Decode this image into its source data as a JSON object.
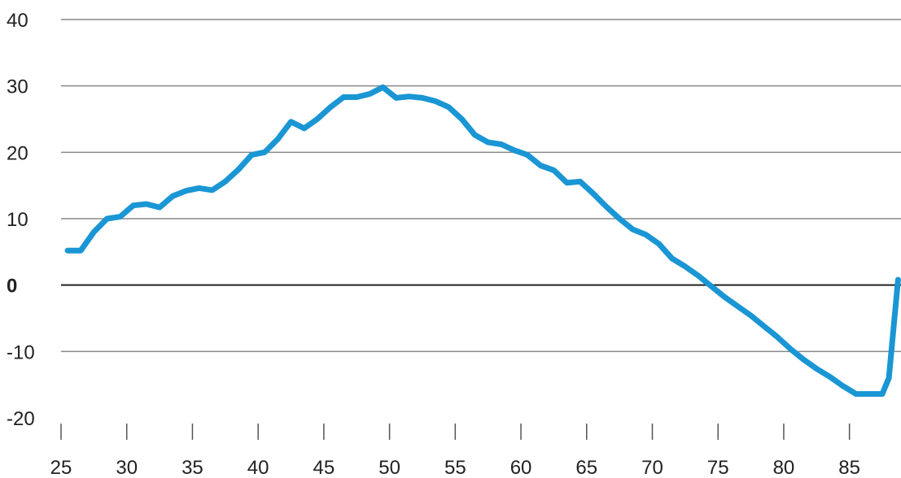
{
  "chart_data": {
    "type": "line",
    "title": "",
    "xlabel": "",
    "ylabel": "",
    "xlim": [
      25,
      88.8
    ],
    "ylim": [
      -20,
      40
    ],
    "yticks": [
      40,
      30,
      20,
      10,
      0,
      -10,
      -20
    ],
    "ytick_labels": [
      "40",
      "30",
      "20",
      "10",
      "0",
      "-10",
      "-20"
    ],
    "xticks": [
      25,
      30,
      35,
      40,
      45,
      50,
      55,
      60,
      65,
      70,
      75,
      80,
      85
    ],
    "xtick_labels": [
      "25",
      "30",
      "35",
      "40",
      "45",
      "50",
      "55",
      "60",
      "65",
      "70",
      "75",
      "80",
      "85"
    ],
    "grid": true,
    "colors": {
      "line": "#1a96d4",
      "grid": "#888888",
      "zero_line": "#222222"
    },
    "series": [
      {
        "x": [
          25.5,
          26.5,
          27.5,
          28.5,
          29.5,
          30.5,
          31.5,
          32.5,
          33.5,
          34.5,
          35.5,
          36.5,
          37.5,
          38.5,
          39.5,
          40.5,
          41.5,
          42.5,
          43.5,
          44.5,
          45.5,
          46.5,
          47.5,
          48.5,
          49.5,
          50.5,
          51.5,
          52.5,
          53.5,
          54.5,
          55.5,
          56.5,
          57.5,
          58.5,
          59.5,
          60.5,
          61.5,
          62.5,
          63.5,
          64.5,
          65.5,
          66.5,
          67.5,
          68.5,
          69.5,
          70.5,
          71.5,
          72.5,
          73.5,
          74.5,
          75.5,
          76.5,
          77.5,
          78.5,
          79.5,
          80.5,
          81.5,
          82.5,
          83.5,
          84.5,
          85.5,
          86.5,
          87.5,
          88.0,
          88.7
        ],
        "y": [
          5.2,
          5.2,
          8.0,
          10.0,
          10.3,
          12.0,
          12.2,
          11.7,
          13.4,
          14.2,
          14.6,
          14.3,
          15.6,
          17.4,
          19.6,
          20.0,
          22.0,
          24.6,
          23.6,
          25.0,
          26.8,
          28.3,
          28.3,
          28.8,
          29.8,
          28.2,
          28.4,
          28.2,
          27.7,
          26.8,
          25.0,
          22.6,
          21.5,
          21.2,
          20.3,
          19.6,
          18.0,
          17.3,
          15.4,
          15.6,
          13.8,
          11.8,
          10.0,
          8.4,
          7.6,
          6.2,
          4.0,
          2.8,
          1.4,
          -0.2,
          -1.8,
          -3.2,
          -4.6,
          -6.2,
          -7.8,
          -9.6,
          -11.2,
          -12.6,
          -13.8,
          -15.2,
          -16.4,
          -16.4,
          -16.4,
          -14.0,
          0.8
        ]
      }
    ]
  }
}
